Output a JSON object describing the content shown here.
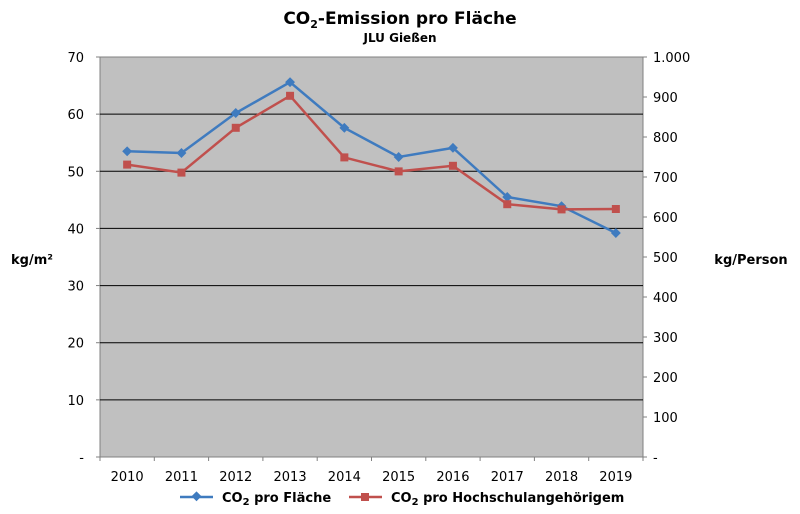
{
  "chart_data": {
    "type": "line",
    "title_main": "CO",
    "title_sub": "2",
    "title_rest": "-Emission  pro  Fläche",
    "subtitle": "JLU Gießen",
    "ylabel_left": "kg/m²",
    "ylabel_right": "kg/Person",
    "categories": [
      "2010",
      "2011",
      "2012",
      "2013",
      "2014",
      "2015",
      "2016",
      "2017",
      "2018",
      "2019"
    ],
    "ylim_left": [
      0,
      70
    ],
    "ylim_right": [
      0,
      1000
    ],
    "yticks_left": [
      "-",
      "10",
      "20",
      "30",
      "40",
      "50",
      "60",
      "70"
    ],
    "yticks_right": [
      "-",
      "100",
      "200",
      "300",
      "400",
      "500",
      "600",
      "700",
      "800",
      "900",
      "1.000"
    ],
    "grid": true,
    "legend_position": "bottom",
    "series": [
      {
        "name_main": "CO",
        "name_sub": "2",
        "name_rest": " pro Fläche",
        "axis": "left",
        "color": "#3f7bbf",
        "marker": "diamond",
        "values": [
          53.5,
          53.2,
          60.2,
          65.6,
          57.6,
          52.5,
          54.1,
          45.5,
          43.9,
          39.2
        ]
      },
      {
        "name_main": "CO",
        "name_sub": "2",
        "name_rest": " pro Hochschulangehörigem",
        "axis": "right",
        "color": "#c0504d",
        "marker": "square",
        "values": [
          731,
          711,
          823,
          903,
          749,
          714,
          728,
          632,
          619,
          620
        ]
      }
    ]
  }
}
